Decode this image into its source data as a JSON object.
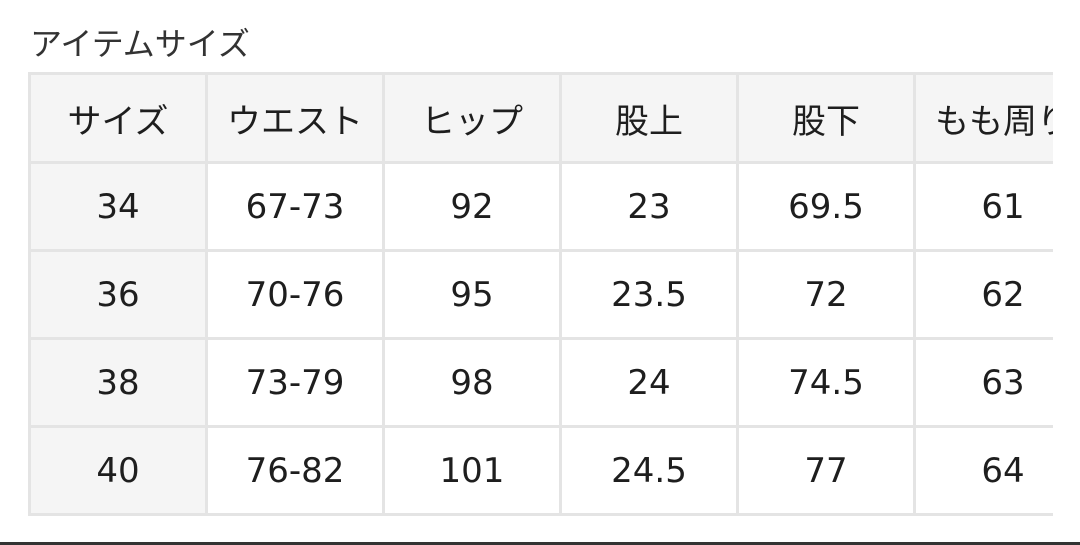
{
  "title": "アイテムサイズ",
  "table": {
    "headers": [
      "サイズ",
      "ウエスト",
      "ヒップ",
      "股上",
      "股下",
      "もも周り"
    ],
    "rows": [
      [
        "34",
        "67-73",
        "92",
        "23",
        "69.5",
        "61"
      ],
      [
        "36",
        "70-76",
        "95",
        "23.5",
        "72",
        "62"
      ],
      [
        "38",
        "73-79",
        "98",
        "24",
        "74.5",
        "63"
      ],
      [
        "40",
        "76-82",
        "101",
        "24.5",
        "77",
        "64"
      ]
    ]
  }
}
